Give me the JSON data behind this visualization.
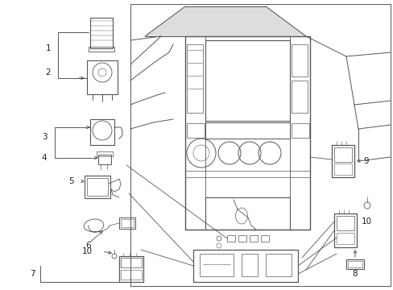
{
  "bg_color": "#ffffff",
  "fig_width": 4.89,
  "fig_height": 3.6,
  "dpi": 100,
  "lc": "#555555",
  "lw": 0.7
}
